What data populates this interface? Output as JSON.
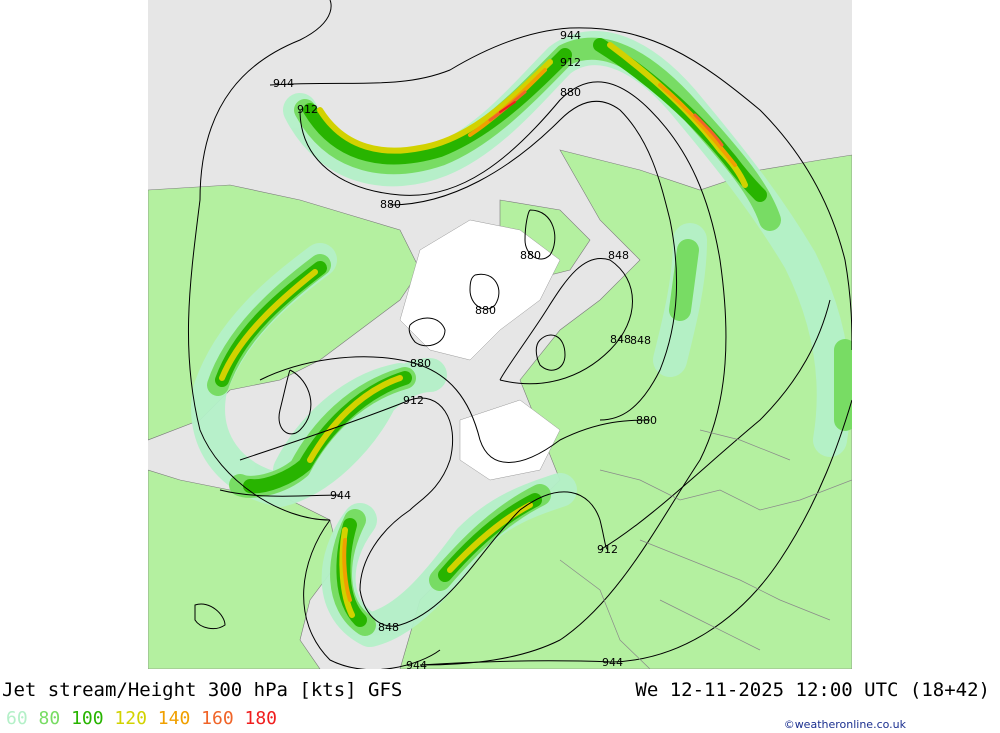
{
  "title": {
    "left": "Jet stream/Height 300 hPa [kts] GFS",
    "right": "We 12-11-2025 12:00 UTC (18+42)"
  },
  "legend": [
    {
      "label": "60",
      "color": "#b4f0c8"
    },
    {
      "label": "80",
      "color": "#78dc64"
    },
    {
      "label": "100",
      "color": "#28b400"
    },
    {
      "label": "120",
      "color": "#d2d200"
    },
    {
      "label": "140",
      "color": "#f0a000"
    },
    {
      "label": "160",
      "color": "#f06428"
    },
    {
      "label": "180",
      "color": "#f01e1e"
    }
  ],
  "credit": "©weatheronline.co.uk",
  "contour_labels": [
    "944",
    "912",
    "880",
    "848",
    "944",
    "912",
    "880",
    "880",
    "880",
    "848",
    "848",
    "848",
    "880",
    "912",
    "880",
    "944",
    "912",
    "944",
    "944"
  ],
  "colors": {
    "land": "#b4f0a0",
    "sea": "#e6e6e6",
    "ice": "#ffffff",
    "border": "#888888"
  }
}
